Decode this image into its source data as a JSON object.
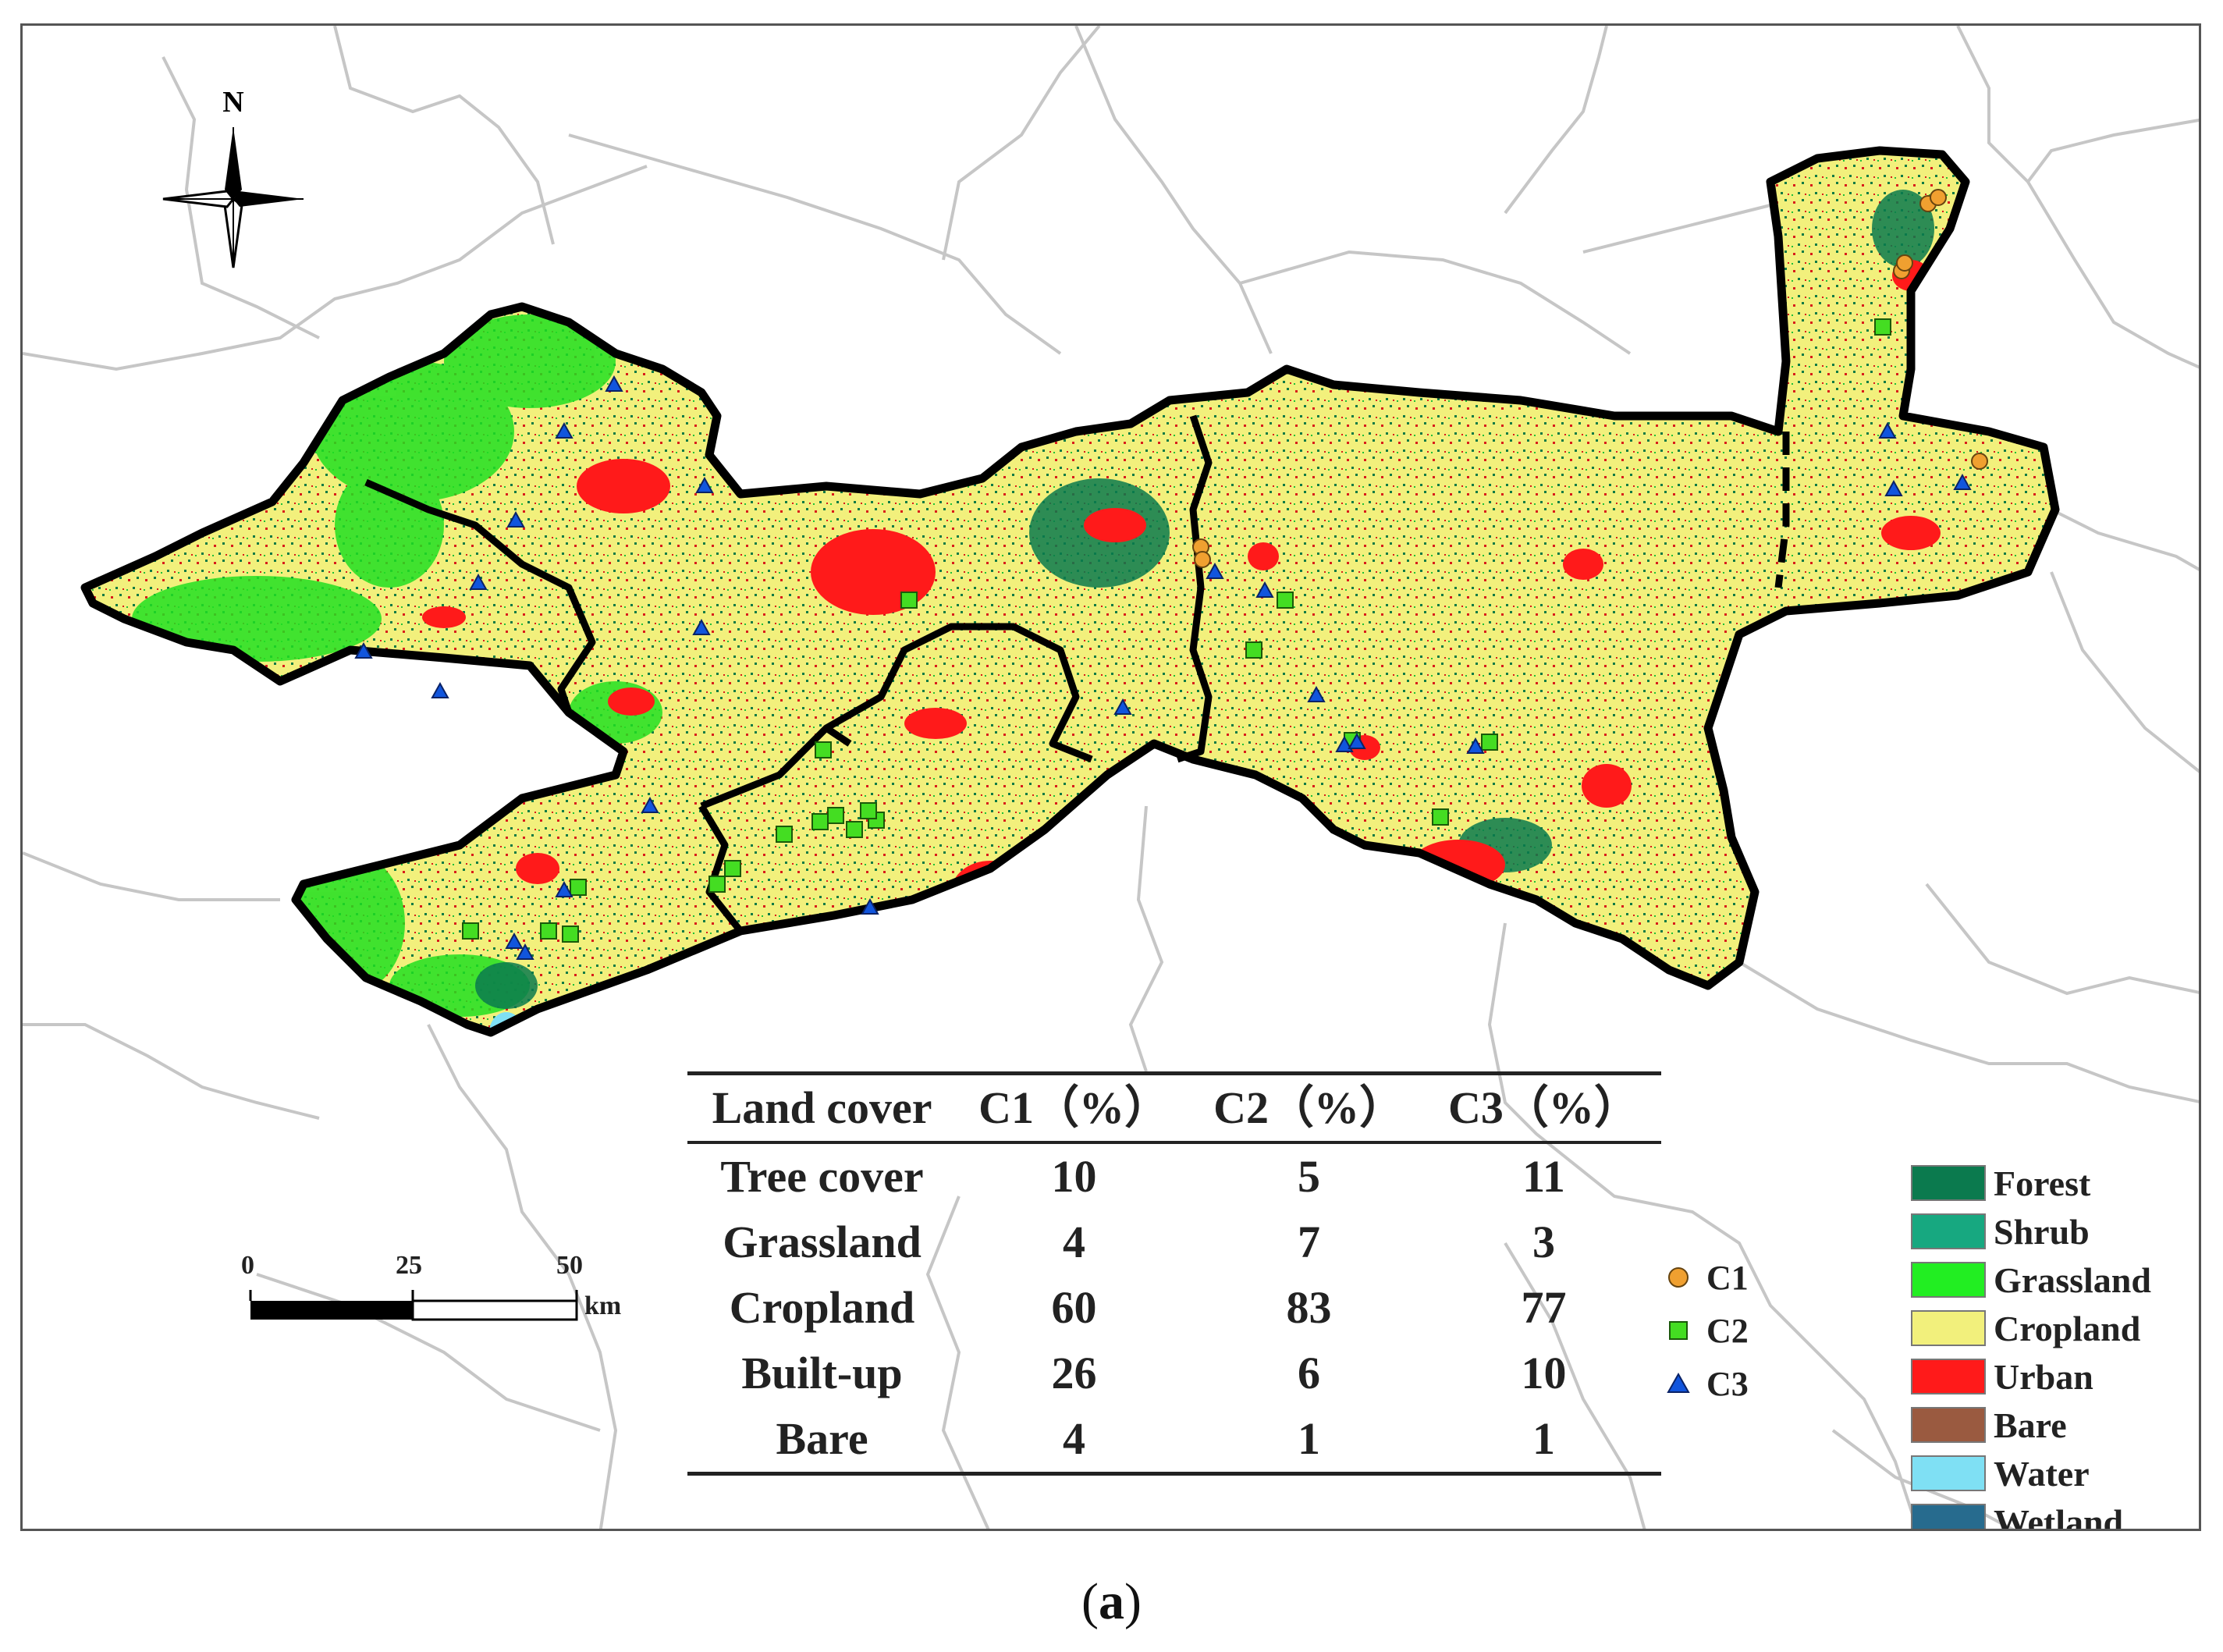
{
  "north_label": "N",
  "scale_bar": {
    "ticks": [
      "0",
      "25",
      "50"
    ],
    "unit": "km"
  },
  "table": {
    "headers": [
      "Land cover",
      "C1（%）",
      "C2（%）",
      "C3（%）"
    ],
    "rows": [
      [
        "Tree cover",
        "10",
        "5",
        "11"
      ],
      [
        "Grassland",
        "4",
        "7",
        "3"
      ],
      [
        "Cropland",
        "60",
        "83",
        "77"
      ],
      [
        "Built-up",
        "26",
        "6",
        "10"
      ],
      [
        "Bare",
        "4",
        "1",
        "1"
      ]
    ]
  },
  "cluster_legend": [
    {
      "label": "C1",
      "color": "#f0a030",
      "shape": "circle"
    },
    {
      "label": "C2",
      "color": "#44dd22",
      "shape": "square"
    },
    {
      "label": "C3",
      "color": "#1155dd",
      "shape": "triangle"
    }
  ],
  "land_cover_legend": [
    {
      "label": "Forest",
      "color": "#0b7a4e"
    },
    {
      "label": "Shrub",
      "color": "#17a880"
    },
    {
      "label": "Grassland",
      "color": "#22ee22"
    },
    {
      "label": "Cropland",
      "color": "#f2f07c"
    },
    {
      "label": "Urban",
      "color": "#ff1a1a"
    },
    {
      "label": "Bare",
      "color": "#9a5a40"
    },
    {
      "label": "Water",
      "color": "#7fe0f4"
    },
    {
      "label": "Wetland",
      "color": "#276b8e"
    }
  ],
  "caption": {
    "open": "(",
    "label": "a",
    "close": ")"
  }
}
